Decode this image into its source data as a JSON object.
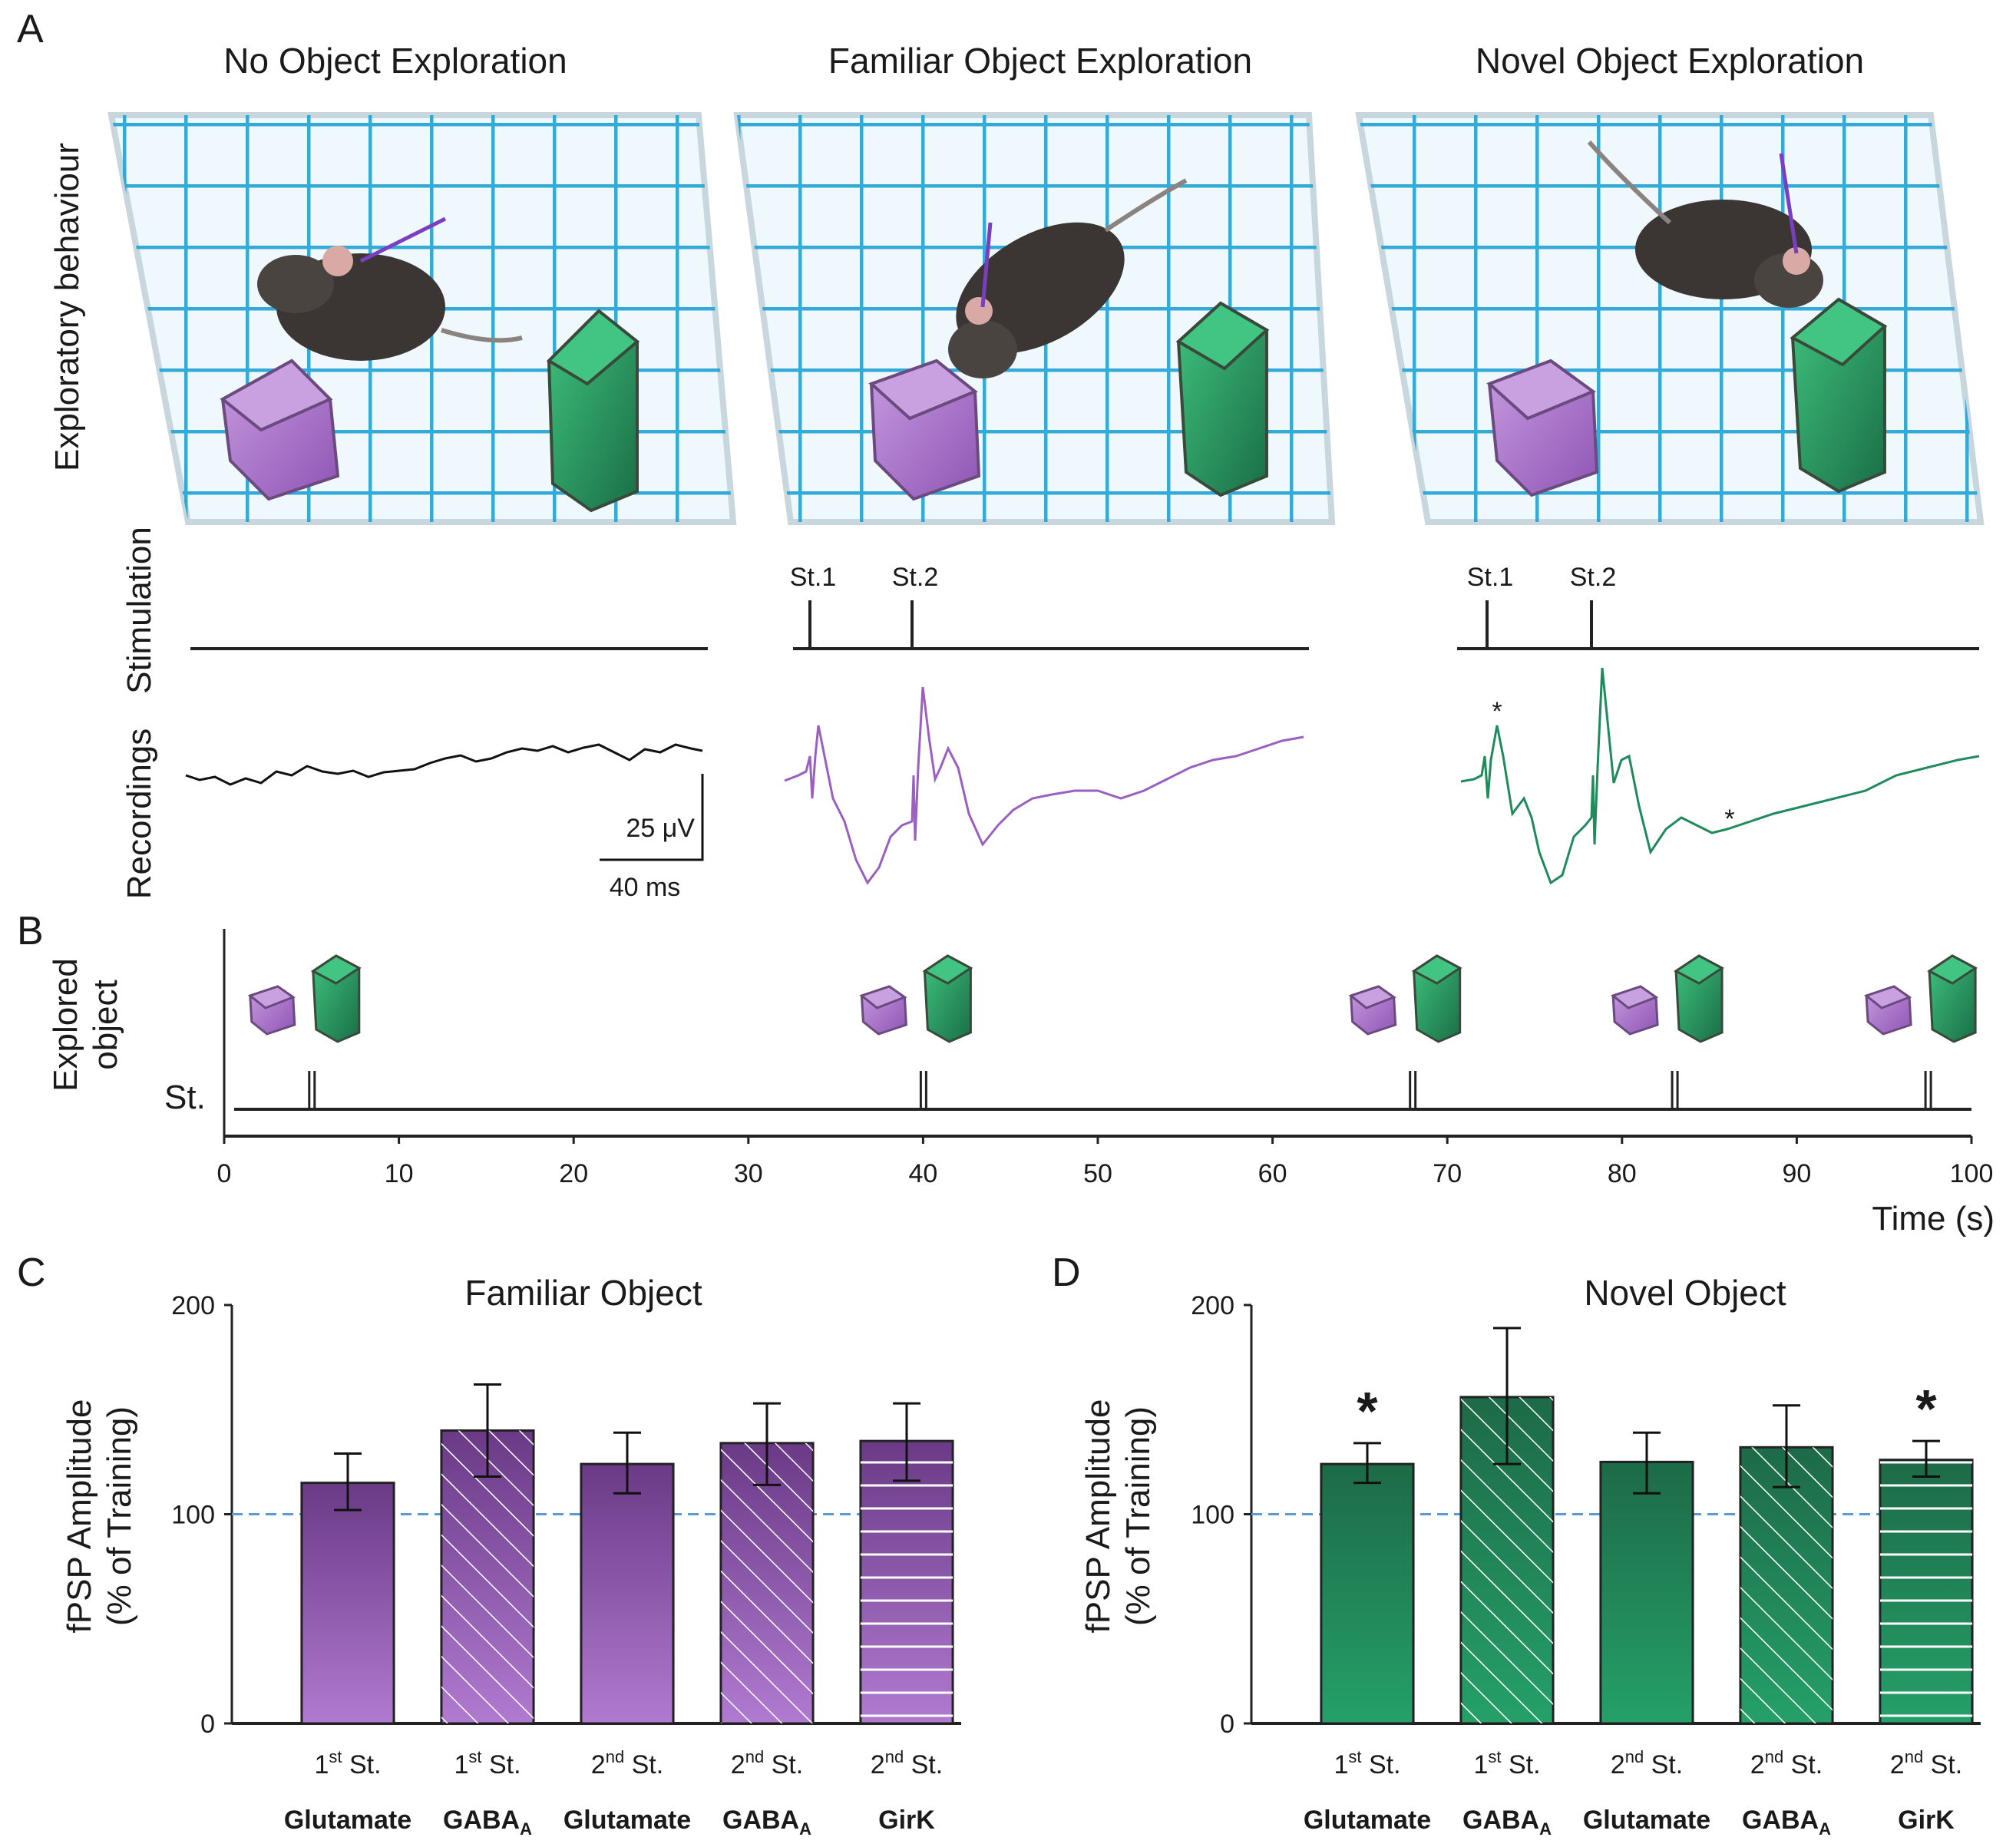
{
  "panel_a": {
    "label": "A",
    "titles": [
      "No Object Exploration",
      "Familiar Object Exploration",
      "Novel Object Exploration"
    ],
    "row_labels": {
      "behaviour": "Exploratory behaviour",
      "stimulation": "Stimulation",
      "recordings": "Recordings"
    },
    "stim_labels": {
      "st1": "St.1",
      "st2": "St.2"
    },
    "scale_bar": {
      "voltage": "25 μV",
      "time": "40 ms"
    },
    "significance_marker": "*",
    "colors": {
      "familiar": "#9a5fc0",
      "novel": "#1f8a5a",
      "baseline": "#111111",
      "grid": "#2aa6d6"
    }
  },
  "panel_b": {
    "label": "B",
    "ylabel_line1": "Explored",
    "ylabel_line2": "object",
    "stim_axis_label": "St.",
    "xlabel": "Time (s)",
    "xlim": [
      0,
      100
    ],
    "xticks": [
      "0",
      "10",
      "20",
      "30",
      "40",
      "50",
      "60",
      "70",
      "80",
      "90",
      "100"
    ],
    "stim_times": [
      5,
      40,
      68,
      83,
      97.5
    ]
  },
  "chart_data": [
    {
      "type": "bar",
      "panel": "C",
      "title": "Familiar Object",
      "ylabel_line1": "fPSP Amplitude",
      "ylabel_line2": "(% of Training)",
      "ylim": [
        0,
        200
      ],
      "yticks": [
        "0",
        "100",
        "200"
      ],
      "reference_line": 100,
      "color": "#7b4a9e",
      "categories": [
        {
          "stim": "1",
          "sup": "st",
          "st": " St.",
          "receptor": "Glutamate",
          "sub": "",
          "value": 115,
          "err_low": 102,
          "err_high": 129,
          "pattern": "solid",
          "sig": ""
        },
        {
          "stim": "1",
          "sup": "st",
          "st": " St.",
          "receptor": "GABA",
          "sub": "A",
          "value": 140,
          "err_low": 118,
          "err_high": 162,
          "pattern": "diag",
          "sig": ""
        },
        {
          "stim": "2",
          "sup": "nd",
          "st": " St.",
          "receptor": "Glutamate",
          "sub": "",
          "value": 124,
          "err_low": 110,
          "err_high": 139,
          "pattern": "solid",
          "sig": ""
        },
        {
          "stim": "2",
          "sup": "nd",
          "st": " St.",
          "receptor": "GABA",
          "sub": "A",
          "value": 134,
          "err_low": 114,
          "err_high": 153,
          "pattern": "diag",
          "sig": ""
        },
        {
          "stim": "2",
          "sup": "nd",
          "st": " St.",
          "receptor": "GirK",
          "sub": "",
          "value": 135,
          "err_low": 116,
          "err_high": 153,
          "pattern": "horiz",
          "sig": ""
        }
      ]
    },
    {
      "type": "bar",
      "panel": "D",
      "title": "Novel Object",
      "ylabel_line1": "fPSP Amplitude",
      "ylabel_line2": "(% of Training)",
      "ylim": [
        0,
        200
      ],
      "yticks": [
        "0",
        "100",
        "200"
      ],
      "reference_line": 100,
      "color": "#1f8a5a",
      "categories": [
        {
          "stim": "1",
          "sup": "st",
          "st": " St.",
          "receptor": "Glutamate",
          "sub": "",
          "value": 124,
          "err_low": 115,
          "err_high": 134,
          "pattern": "solid",
          "sig": "*"
        },
        {
          "stim": "1",
          "sup": "st",
          "st": " St.",
          "receptor": "GABA",
          "sub": "A",
          "value": 156,
          "err_low": 124,
          "err_high": 189,
          "pattern": "diag",
          "sig": ""
        },
        {
          "stim": "2",
          "sup": "nd",
          "st": " St.",
          "receptor": "Glutamate",
          "sub": "",
          "value": 125,
          "err_low": 110,
          "err_high": 139,
          "pattern": "solid",
          "sig": ""
        },
        {
          "stim": "2",
          "sup": "nd",
          "st": " St.",
          "receptor": "GABA",
          "sub": "A",
          "value": 132,
          "err_low": 113,
          "err_high": 152,
          "pattern": "diag",
          "sig": ""
        },
        {
          "stim": "2",
          "sup": "nd",
          "st": " St.",
          "receptor": "GirK",
          "sub": "",
          "value": 126,
          "err_low": 118,
          "err_high": 135,
          "pattern": "horiz",
          "sig": "*"
        }
      ]
    }
  ]
}
